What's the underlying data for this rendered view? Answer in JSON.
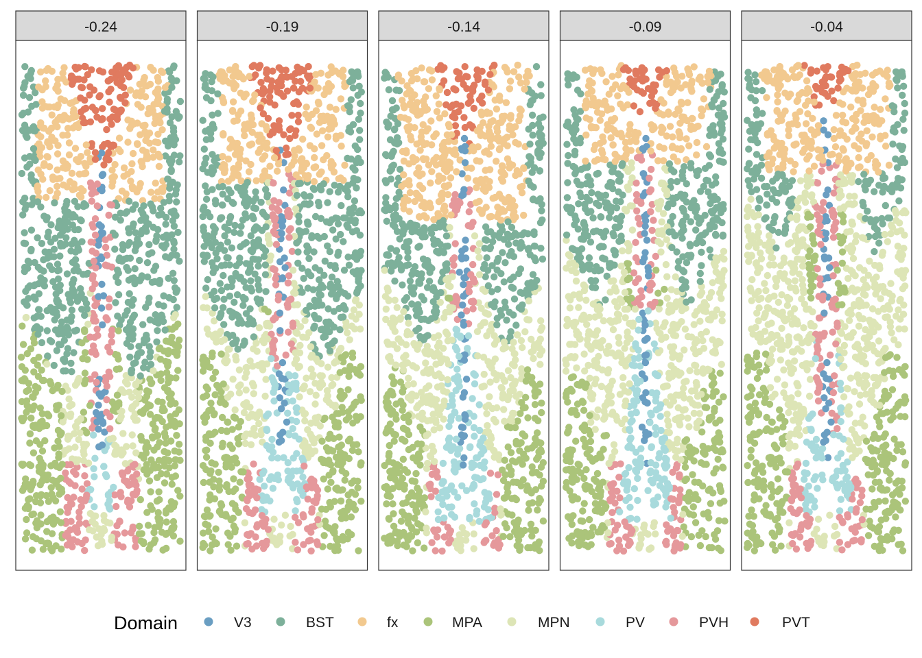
{
  "chart_data": {
    "type": "scatter",
    "title": "",
    "xlabel": "",
    "ylabel": "",
    "facet_variable": "section",
    "panels": [
      "-0.24",
      "-0.19",
      "-0.14",
      "-0.09",
      "-0.04"
    ],
    "legend": {
      "title": "Domain",
      "position": "bottom",
      "entries": [
        {
          "label": "V3",
          "color": "#6A9EC2"
        },
        {
          "label": "BST",
          "color": "#7DB09A"
        },
        {
          "label": "fx",
          "color": "#F2C98F"
        },
        {
          "label": "MPA",
          "color": "#ABC47A"
        },
        {
          "label": "MPN",
          "color": "#DDE5B6"
        },
        {
          "label": "PV",
          "color": "#A8DADC"
        },
        {
          "label": "PVH",
          "color": "#E5989B"
        },
        {
          "label": "PVT",
          "color": "#E07A5F"
        }
      ]
    },
    "grid": false,
    "axes_visible": false
  }
}
